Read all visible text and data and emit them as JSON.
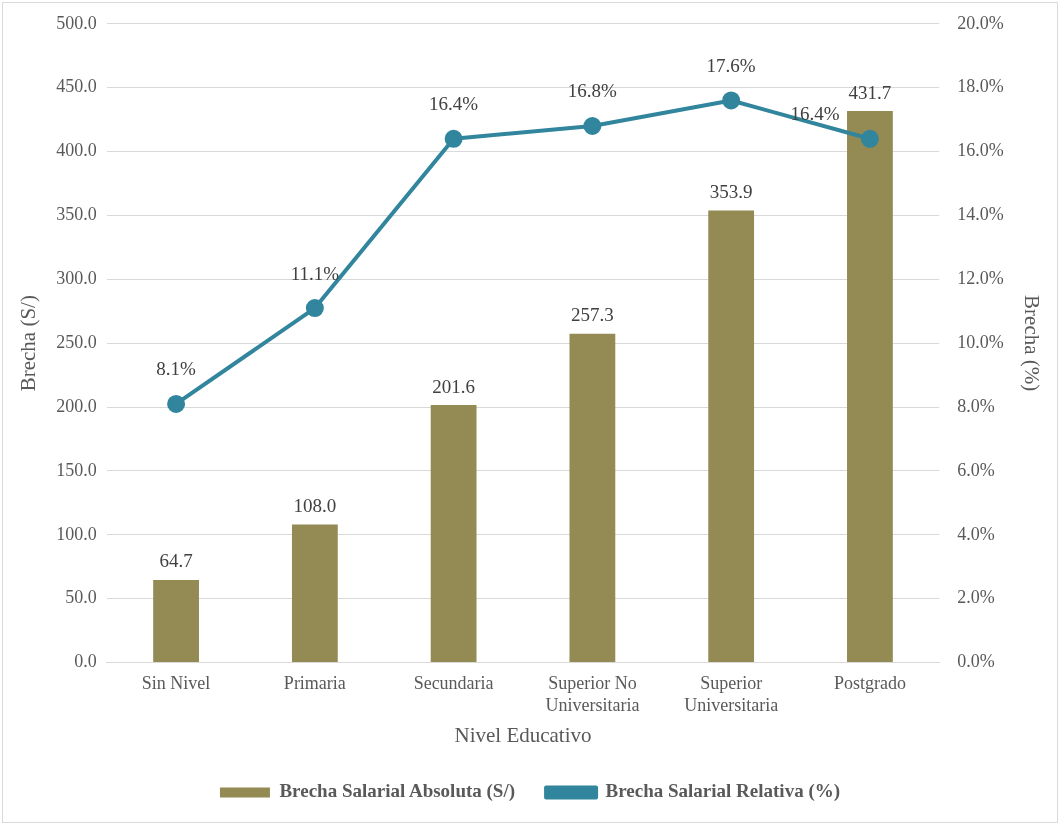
{
  "chart_data": {
    "type": "bar",
    "categories": [
      "Sin Nivel",
      "Primaria",
      "Secundaria",
      "Superior No Universitaria",
      "Superior Universitaria",
      "Postgrado"
    ],
    "xlabel": "Nivel Educativo",
    "ylabel": "Brecha (S/)",
    "y2label": "Brecha (%)",
    "series": [
      {
        "name": "Brecha Salarial Absoluta (S/)",
        "color": "#948a54",
        "values": [
          64.7,
          108.0,
          201.6,
          257.3,
          353.9,
          431.7
        ],
        "value_labels": [
          "64.7",
          "108.0",
          "201.6",
          "257.3",
          "353.9",
          "431.7"
        ]
      },
      {
        "name": "Brecha Salarial Relativa (%)",
        "type": "line",
        "axis": "y2",
        "color": "#31859c",
        "marker": "circle",
        "values": [
          8.1,
          11.1,
          16.4,
          16.8,
          17.6,
          16.4
        ],
        "value_labels": [
          "8.1%",
          "11.1%",
          "16.4%",
          "16.8%",
          "17.6%",
          "16.4%"
        ]
      }
    ],
    "ylim": [
      0,
      500
    ],
    "yticks": [
      {
        "value": 0,
        "label": "0.0"
      },
      {
        "value": 50,
        "label": "50.0"
      },
      {
        "value": 100,
        "label": "100.0"
      },
      {
        "value": 150,
        "label": "150.0"
      },
      {
        "value": 200,
        "label": "200.0"
      },
      {
        "value": 250,
        "label": "250.0"
      },
      {
        "value": 300,
        "label": "300.0"
      },
      {
        "value": 350,
        "label": "350.0"
      },
      {
        "value": 400,
        "label": "400.0"
      },
      {
        "value": 450,
        "label": "450.0"
      },
      {
        "value": 500,
        "label": "500.0"
      }
    ],
    "y2lim": [
      0,
      20
    ],
    "y2ticks": [
      {
        "value": 0,
        "label": "0.0%"
      },
      {
        "value": 2,
        "label": "2.0%"
      },
      {
        "value": 4,
        "label": "4.0%"
      },
      {
        "value": 6,
        "label": "6.0%"
      },
      {
        "value": 8,
        "label": "8.0%"
      },
      {
        "value": 10,
        "label": "10.0%"
      },
      {
        "value": 12,
        "label": "12.0%"
      },
      {
        "value": 14,
        "label": "14.0%"
      },
      {
        "value": 16,
        "label": "16.0%"
      },
      {
        "value": 18,
        "label": "18.0%"
      },
      {
        "value": 20,
        "label": "20.0%"
      }
    ],
    "grid": "y",
    "legend": "bottom"
  }
}
